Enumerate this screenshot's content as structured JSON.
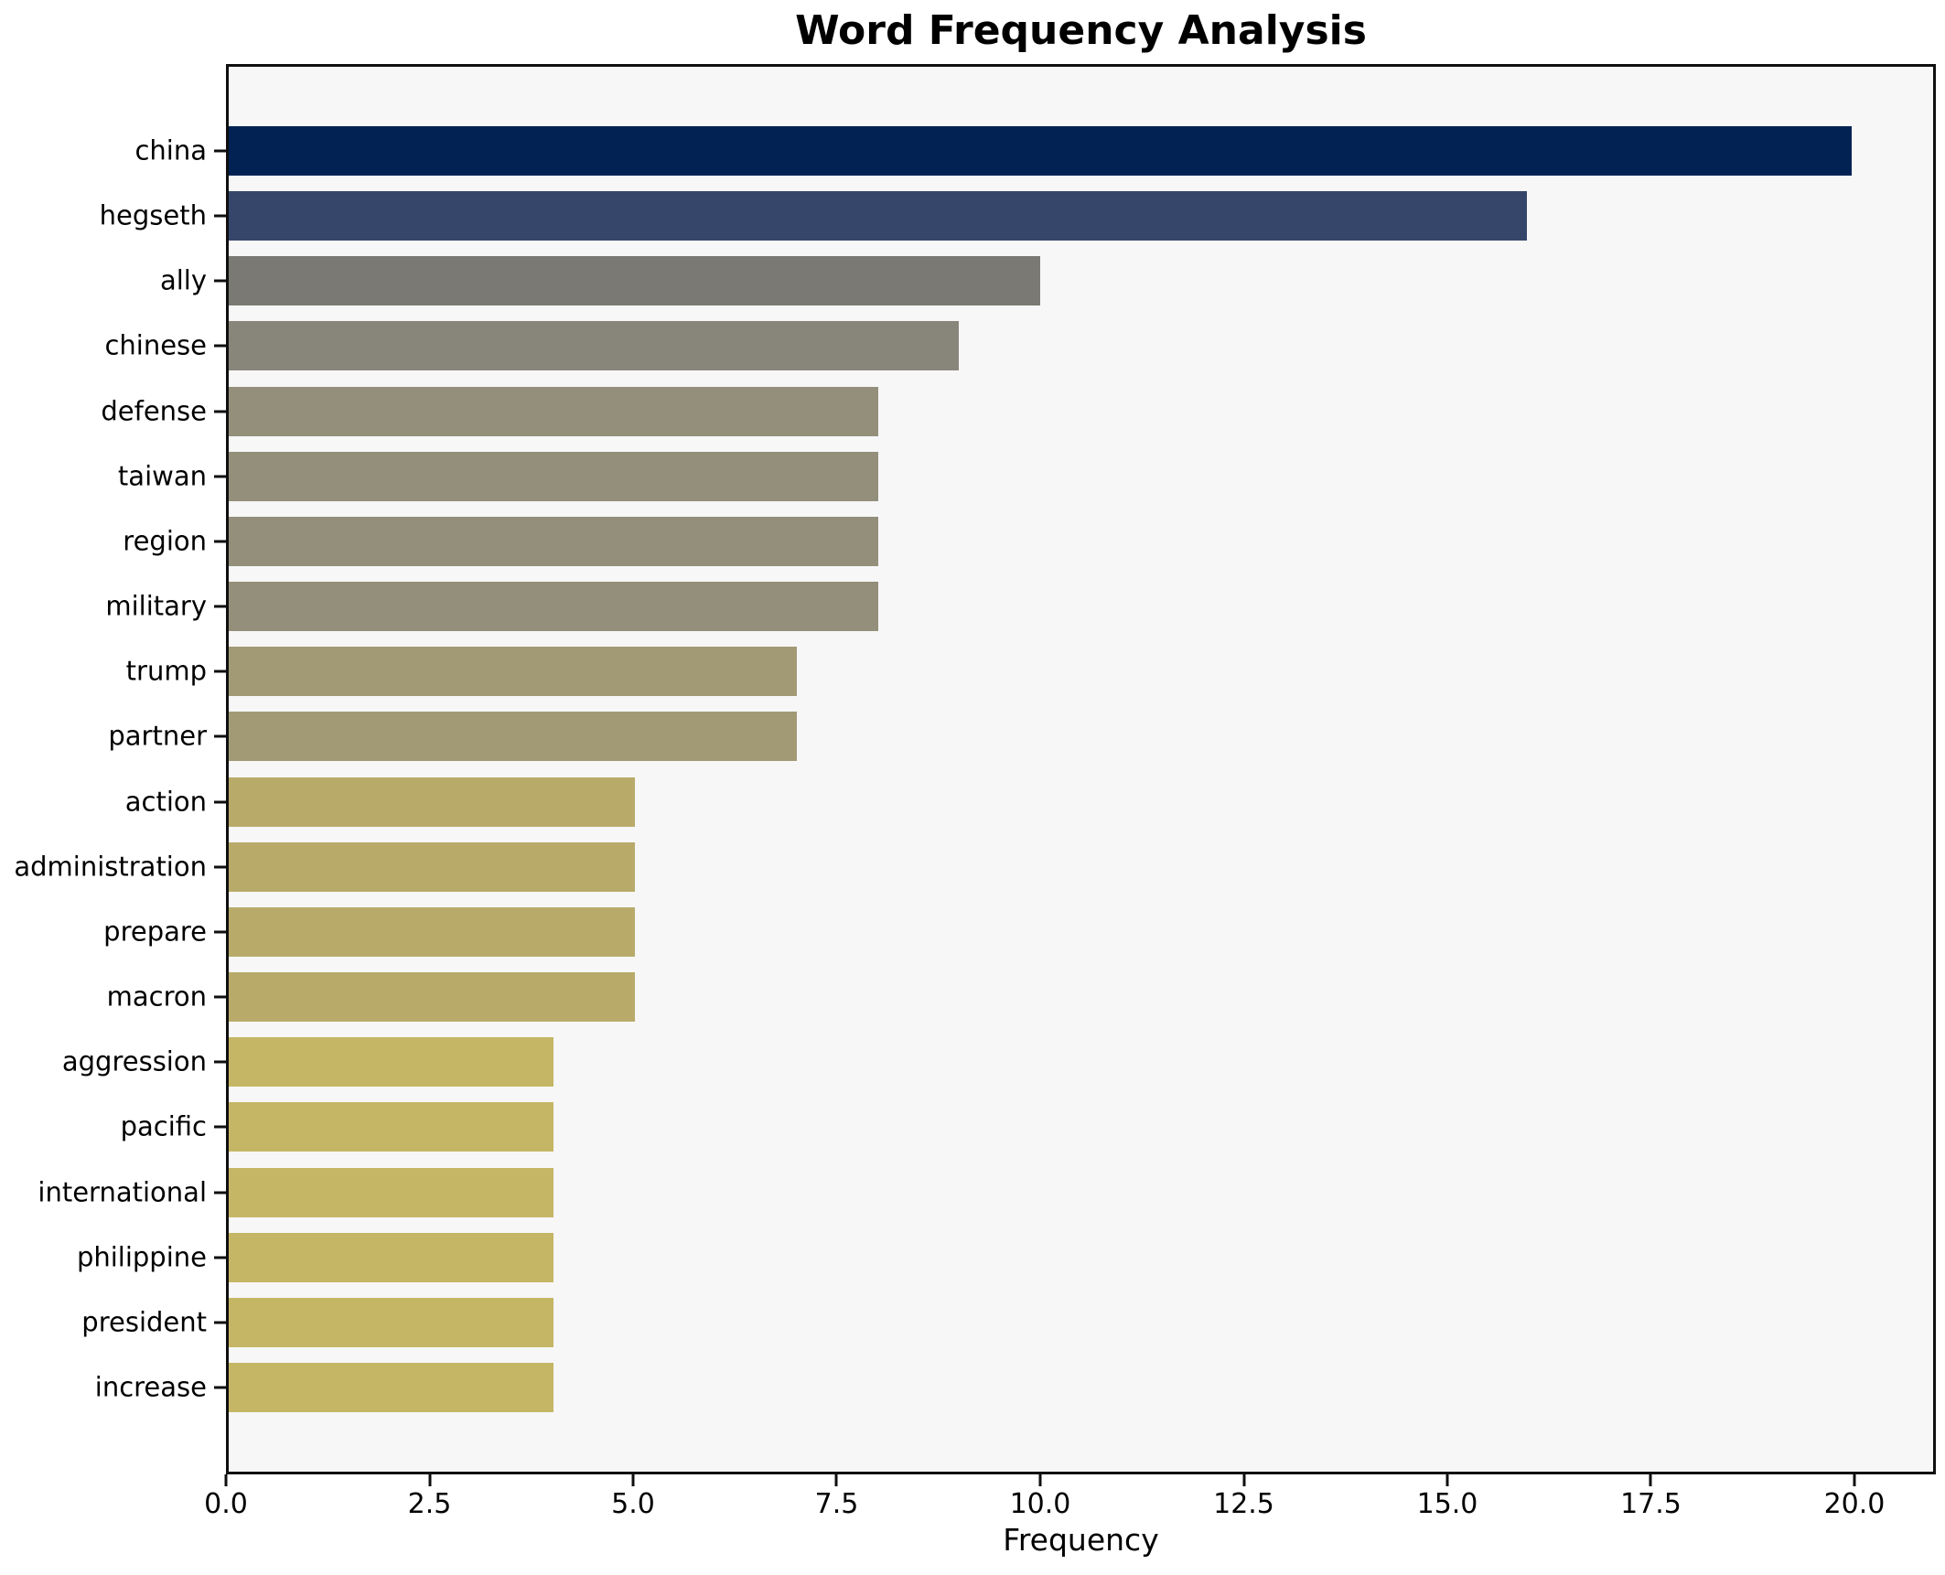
{
  "chart_data": {
    "type": "bar",
    "orientation": "horizontal",
    "title": "Word Frequency Analysis",
    "xlabel": "Frequency",
    "ylabel": "",
    "categories": [
      "china",
      "hegseth",
      "ally",
      "chinese",
      "defense",
      "taiwan",
      "region",
      "military",
      "trump",
      "partner",
      "action",
      "administration",
      "prepare",
      "macron",
      "aggression",
      "pacific",
      "international",
      "philippine",
      "president",
      "increase"
    ],
    "values": [
      20,
      16,
      10,
      9,
      8,
      8,
      8,
      8,
      7,
      7,
      5,
      5,
      5,
      5,
      4,
      4,
      4,
      4,
      4,
      4
    ],
    "bar_colors": [
      "#012253",
      "#36466b",
      "#7a7973",
      "#88857a",
      "#938f7a",
      "#938f7a",
      "#938f7a",
      "#938f7a",
      "#a29a75",
      "#a29a75",
      "#b8ab6a",
      "#b8ab6a",
      "#b8ab6a",
      "#b8ab6a",
      "#c5b665",
      "#c5b665",
      "#c5b665",
      "#c5b665",
      "#c5b665",
      "#c5b665"
    ],
    "xlim": [
      0,
      21
    ],
    "xticks": [
      0,
      2.5,
      5,
      7.5,
      10,
      12.5,
      15,
      17.5,
      20
    ],
    "xtick_labels": [
      "0.0",
      "2.5",
      "5.0",
      "7.5",
      "10.0",
      "12.5",
      "15.0",
      "17.5",
      "20.0"
    ],
    "grid": false,
    "legend": false,
    "plot_background": "#f7f7f8",
    "figure_background": "#ffffff",
    "spine_color": "#0f0f0f"
  }
}
